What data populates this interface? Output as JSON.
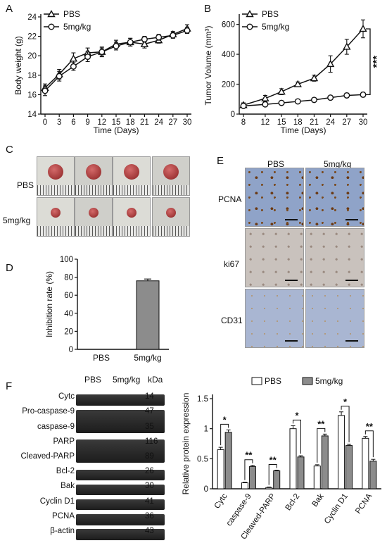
{
  "panels": {
    "a": "A",
    "b": "B",
    "c": "C",
    "d": "D",
    "e": "E",
    "f": "F"
  },
  "chart_data": [
    {
      "panel": "A",
      "type": "line",
      "xlabel": "Time (Days)",
      "ylabel": "Body weight (g)",
      "x": [
        0,
        3,
        6,
        9,
        12,
        15,
        18,
        21,
        24,
        27,
        30
      ],
      "xticks": [
        "0",
        "3",
        "6",
        "9",
        "12",
        "15",
        "18",
        "21",
        "24",
        "27",
        "30"
      ],
      "yticks": [
        "14",
        "16",
        "18",
        "20",
        "22",
        "24"
      ],
      "ylim": [
        14,
        24
      ],
      "legend_position": "top-left",
      "series": [
        {
          "name": "PBS",
          "marker": "triangle",
          "values": [
            16.7,
            18.1,
            19.7,
            20.3,
            20.4,
            21.2,
            21.4,
            21.2,
            21.6,
            22.2,
            22.8
          ],
          "err": [
            0.4,
            0.5,
            0.6,
            0.5,
            0.4,
            0.4,
            0.4,
            0.4,
            0.3,
            0.3,
            0.4
          ]
        },
        {
          "name": "5mg/kg",
          "marker": "circle",
          "values": [
            16.4,
            17.9,
            18.9,
            19.9,
            20.4,
            21.0,
            21.4,
            21.7,
            21.9,
            22.1,
            22.6
          ],
          "err": [
            0.5,
            0.5,
            0.4,
            0.5,
            0.5,
            0.4,
            0.4,
            0.3,
            0.3,
            0.3,
            0.3
          ]
        }
      ]
    },
    {
      "panel": "B",
      "type": "line",
      "xlabel": "Time (Days)",
      "ylabel": "Tumor Volume (mm³)",
      "x": [
        8,
        12,
        15,
        18,
        21,
        24,
        27,
        30
      ],
      "xticks": [
        "8",
        "12",
        "15",
        "18",
        "21",
        "24",
        "27",
        "30"
      ],
      "yticks": [
        "0",
        "200",
        "400",
        "600"
      ],
      "ylim": [
        0,
        650
      ],
      "legend_position": "top-left",
      "annotation": "***",
      "series": [
        {
          "name": "PBS",
          "marker": "triangle",
          "values": [
            60,
            105,
            150,
            200,
            240,
            335,
            450,
            570
          ],
          "err": [
            15,
            20,
            20,
            15,
            20,
            55,
            50,
            60
          ]
        },
        {
          "name": "5mg/kg",
          "marker": "circle",
          "values": [
            55,
            65,
            75,
            85,
            95,
            110,
            125,
            130
          ],
          "err": [
            10,
            10,
            10,
            10,
            10,
            12,
            15,
            15
          ]
        }
      ]
    },
    {
      "panel": "D",
      "type": "bar",
      "categories": [
        "PBS",
        "5mg/kg"
      ],
      "values": [
        0,
        76
      ],
      "err": [
        0,
        2
      ],
      "ylabel": "Inhibition rate (%)",
      "yticks": [
        "0",
        "20",
        "40",
        "60",
        "80",
        "100"
      ],
      "ylim": [
        0,
        100
      ]
    },
    {
      "panel": "F",
      "type": "bar",
      "ylabel": "Relative protein expression",
      "categories": [
        "Cytc",
        "caspase-9",
        "Cleaved-PARP",
        "Bcl-2",
        "Bak",
        "Cyclin D1",
        "PCNA"
      ],
      "yticks": [
        "0",
        "0.5",
        "1",
        "1.5"
      ],
      "ylim": [
        0,
        1.5
      ],
      "legend_position": "top",
      "series": [
        {
          "name": "PBS",
          "color": "#ffffff",
          "values": [
            0.65,
            0.1,
            0.02,
            1.0,
            0.38,
            1.22,
            0.84
          ],
          "err": [
            0.04,
            0.01,
            0.01,
            0.05,
            0.02,
            0.06,
            0.03
          ]
        },
        {
          "name": "5mg/kg",
          "color": "#8c8c8c",
          "values": [
            0.94,
            0.37,
            0.3,
            0.53,
            0.88,
            0.72,
            0.46
          ],
          "err": [
            0.04,
            0.02,
            0.01,
            0.02,
            0.03,
            0.02,
            0.03
          ]
        }
      ],
      "significance": [
        "*",
        "**",
        "**",
        "*",
        "**",
        "*",
        "**"
      ]
    }
  ],
  "panel_c": {
    "rows": [
      "PBS",
      "5mg/kg"
    ]
  },
  "panel_e": {
    "columns": [
      "PBS",
      "5mg/kg"
    ],
    "rows": [
      "PCNA",
      "ki67",
      "CD31"
    ]
  },
  "panel_f_blot": {
    "columns": [
      "PBS",
      "5mg/kg"
    ],
    "kda_header": "kDa",
    "bands": [
      {
        "label": "Cytc",
        "kda": "14"
      },
      {
        "label": "Pro-caspase-9",
        "kda": "47"
      },
      {
        "label": "caspase-9",
        "kda": "35"
      },
      {
        "label": "PARP",
        "kda": "116"
      },
      {
        "label": "Cleaved-PARP",
        "kda": "89"
      },
      {
        "label": "Bcl-2",
        "kda": "26"
      },
      {
        "label": "Bak",
        "kda": "30"
      },
      {
        "label": "Cyclin D1",
        "kda": "41"
      },
      {
        "label": "PCNA",
        "kda": "36"
      },
      {
        "label": "β-actin",
        "kda": "43"
      }
    ]
  }
}
